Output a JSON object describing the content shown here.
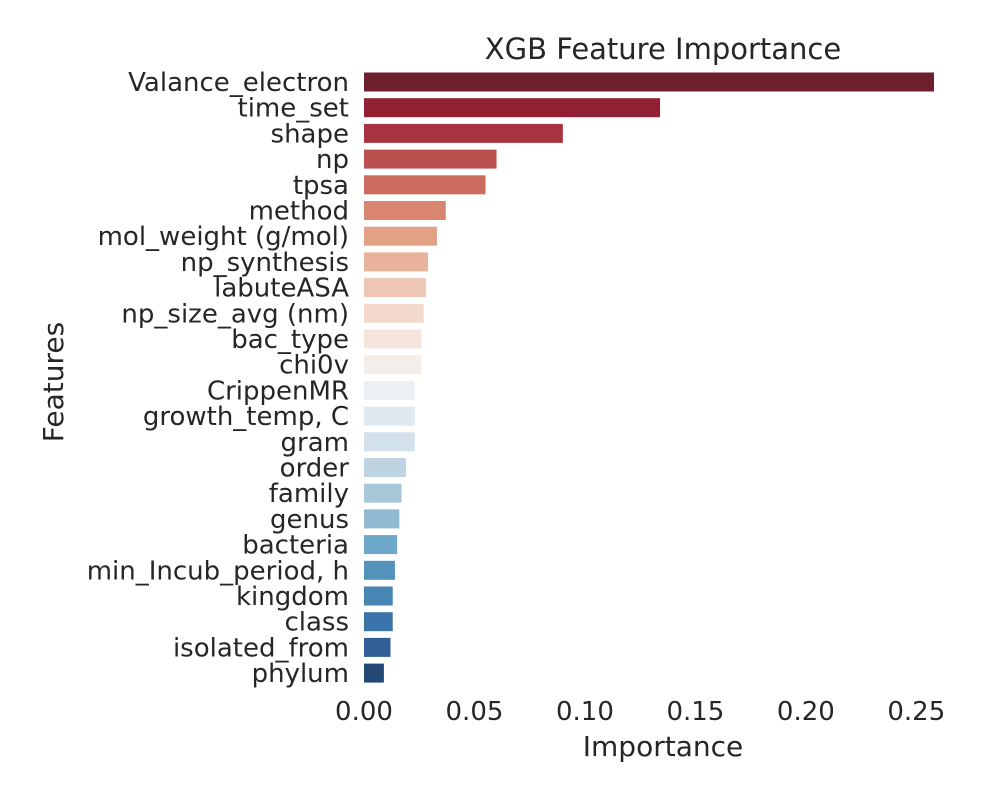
{
  "chart_data": {
    "type": "bar",
    "orientation": "horizontal",
    "title": "XGB Feature Importance",
    "xlabel": "Importance",
    "ylabel": "Features",
    "xlim": [
      0,
      0.258
    ],
    "xticks": [
      "0.00",
      "0.05",
      "0.10",
      "0.15",
      "0.20",
      "0.25"
    ],
    "grid": false,
    "legend": "none",
    "categories": [
      "Valance_electron",
      "time_set",
      "shape",
      "np",
      "tpsa",
      "method",
      "mol_weight (g/mol)",
      "np_synthesis",
      "labuteASA",
      "np_size_avg (nm)",
      "bac_type",
      "chi0v",
      "CrippenMR",
      "growth_temp, C",
      "gram",
      "order",
      "family",
      "genus",
      "bacteria",
      "min_Incub_period, h",
      "kingdom",
      "class",
      "isolated_from",
      "phylum"
    ],
    "values": [
      0.258,
      0.134,
      0.09,
      0.06,
      0.055,
      0.037,
      0.033,
      0.029,
      0.028,
      0.027,
      0.026,
      0.026,
      0.023,
      0.023,
      0.023,
      0.019,
      0.017,
      0.016,
      0.015,
      0.014,
      0.013,
      0.013,
      0.012,
      0.009
    ],
    "colors": [
      "#6c1f2d",
      "#921f33",
      "#a83340",
      "#bb514f",
      "#cb6c5e",
      "#d98670",
      "#e2a084",
      "#e9b39b",
      "#eec6b4",
      "#f3d9cc",
      "#f5e4dc",
      "#f4eeeb",
      "#edf1f4",
      "#e0e9ef",
      "#d3e1ea",
      "#bed4e3",
      "#a7c8d9",
      "#8fbad1",
      "#6ea8c8",
      "#5393bb",
      "#4785b3",
      "#3b74a9",
      "#2f5f96",
      "#234876"
    ]
  }
}
